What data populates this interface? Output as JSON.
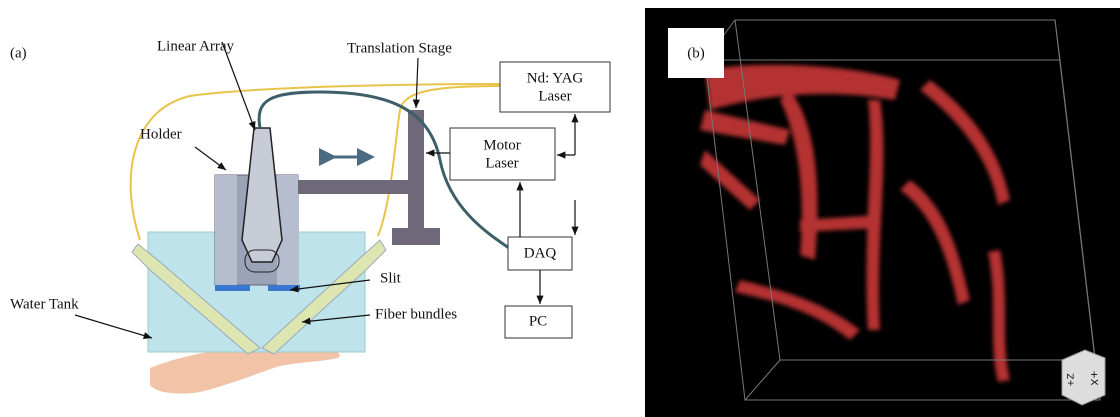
{
  "panel_a": {
    "tag": "(a)",
    "linear_array": "Linear Array",
    "translation_stage": "Translation Stage",
    "laser": [
      "Nd: YAG",
      "Laser"
    ],
    "holder": "Holder",
    "motor": [
      "Motor",
      "Laser"
    ],
    "daq": "DAQ",
    "slit": "Slit",
    "water_tank": "Water Tank",
    "fiber_bundles": "Fiber bundles",
    "pc": "PC"
  },
  "panel_b": {
    "tag": "(b)",
    "axis_x": "+X",
    "axis_z": "+Z"
  }
}
